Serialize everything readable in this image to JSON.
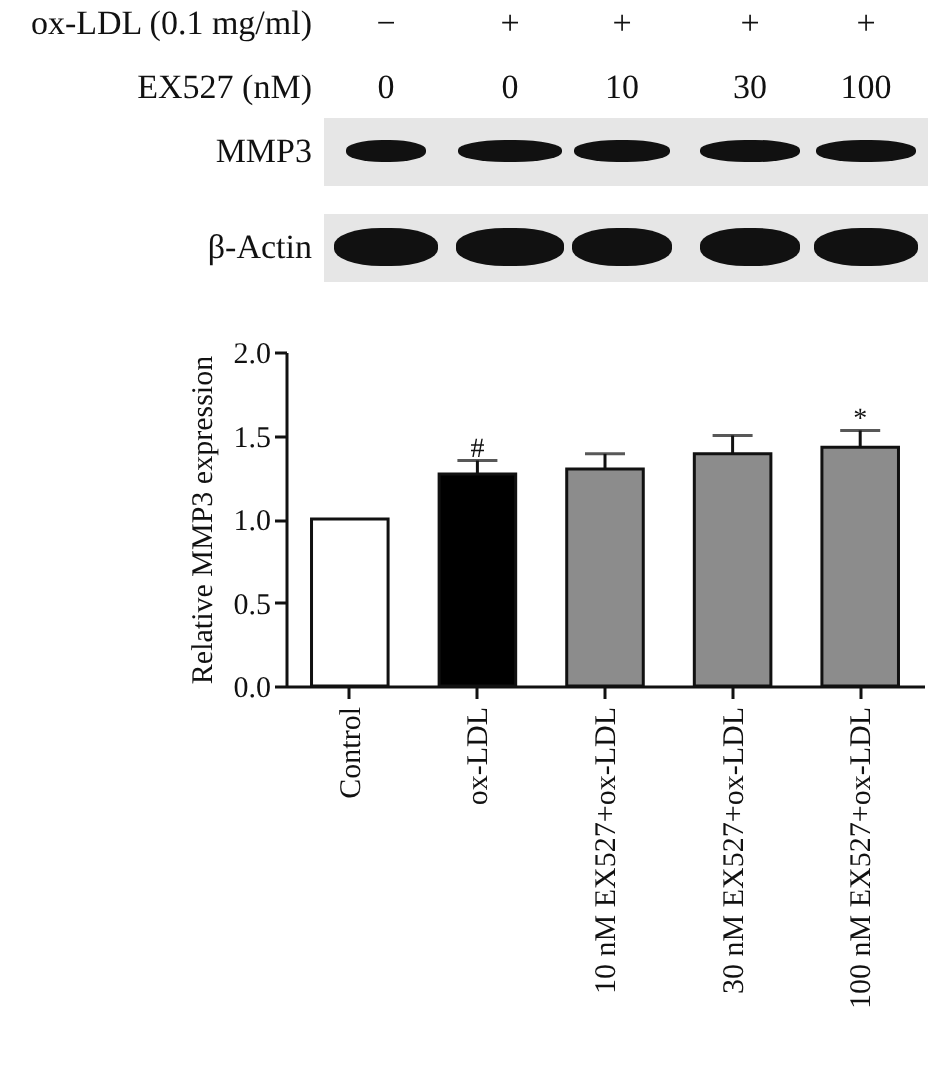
{
  "chart_data": {
    "type": "bar",
    "ylabel": "Relative MMP3 expression",
    "categories": [
      "Control",
      "ox-LDL",
      "10 nM EX527+ox-LDL",
      "30 nM EX527+ox-LDL",
      "100 nM EX527+ox-LDL"
    ],
    "values": [
      1.0,
      1.27,
      1.3,
      1.39,
      1.43
    ],
    "colors": [
      "#ffffff",
      "#000000",
      "#8c8c8c",
      "#8c8c8c",
      "#8c8c8c"
    ],
    "errors": [
      null,
      [
        1.27,
        1.35
      ],
      [
        1.3,
        1.39
      ],
      [
        1.39,
        1.5
      ],
      [
        1.43,
        1.53
      ]
    ],
    "ylim": [
      0,
      2
    ],
    "yticks": [
      {
        "value": 0,
        "label": "0.0"
      },
      {
        "value": 0.5,
        "label": "0.5"
      },
      {
        "value": 1,
        "label": "1.0"
      },
      {
        "value": 1.5,
        "label": "1.5"
      },
      {
        "value": 2,
        "label": "2.0"
      }
    ],
    "grid": false,
    "annotations": [
      {
        "text": "#",
        "x": "ox-LDL",
        "y": 1.42
      },
      {
        "text": "*",
        "x": "100 nM EX527+ox-LDL",
        "y": 1.6
      },
      "ox-LDL (0.1 mg/ml)",
      "−",
      "+",
      "+",
      "+",
      "+",
      "EX527 (nM)",
      "0",
      "0",
      "10",
      "30",
      "100",
      "MMP3",
      "β-Actin"
    ]
  }
}
